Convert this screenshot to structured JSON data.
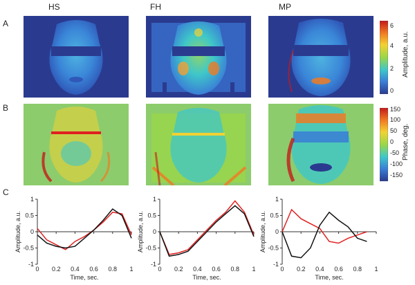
{
  "columns": [
    "HS",
    "FH",
    "MP"
  ],
  "row_labels": [
    "A",
    "B",
    "C"
  ],
  "colorbar_amplitude": {
    "title": "Amplitude, a.u.",
    "ticks": [
      "6",
      "4",
      "2",
      "0"
    ],
    "colors": [
      "#2a3b8f",
      "#3a7ed6",
      "#3fc7c9",
      "#9ad64a",
      "#f2d233",
      "#f07b23",
      "#c41a1a"
    ]
  },
  "colorbar_phase": {
    "title": "Phase, deg.",
    "ticks": [
      "150",
      "100",
      "50",
      "0",
      "-50",
      "-100",
      "-150"
    ],
    "colors": [
      "#2a3b8f",
      "#3a7ed6",
      "#3fc7c9",
      "#9ad64a",
      "#f2d233",
      "#f07b23",
      "#c41a1a"
    ]
  },
  "chart_data": [
    {
      "type": "line",
      "xlabel": "Time, sec.",
      "ylabel": "Amplitude, a.u.",
      "xlim": [
        0,
        1
      ],
      "ylim": [
        -1,
        1
      ],
      "xticks": [
        "0",
        "0.2",
        "0.4",
        "0.6",
        "0.8",
        "1"
      ],
      "yticks": [
        "1",
        "0.5",
        "0",
        "-0.5",
        "-1"
      ],
      "series": [
        {
          "color": "#e02020",
          "x": [
            0,
            0.1,
            0.2,
            0.3,
            0.4,
            0.5,
            0.6,
            0.7,
            0.8,
            0.9,
            1.0
          ],
          "y": [
            0.1,
            -0.25,
            -0.4,
            -0.55,
            -0.3,
            -0.15,
            0.05,
            0.3,
            0.6,
            0.55,
            -0.1
          ]
        },
        {
          "color": "#111111",
          "x": [
            0,
            0.1,
            0.2,
            0.3,
            0.4,
            0.5,
            0.6,
            0.7,
            0.8,
            0.9,
            1.0
          ],
          "y": [
            -0.1,
            -0.35,
            -0.45,
            -0.5,
            -0.45,
            -0.2,
            0.05,
            0.35,
            0.7,
            0.5,
            -0.2
          ]
        }
      ]
    },
    {
      "type": "line",
      "xlabel": "Time, sec.",
      "ylabel": "Amplitude, a.u.",
      "xlim": [
        0,
        1
      ],
      "ylim": [
        -1,
        1
      ],
      "xticks": [
        "0",
        "0.2",
        "0.4",
        "0.6",
        "0.8",
        "1"
      ],
      "yticks": [
        "1",
        "0.5",
        "0",
        "-0.5",
        "-1"
      ],
      "series": [
        {
          "color": "#e02020",
          "x": [
            0,
            0.1,
            0.2,
            0.3,
            0.4,
            0.5,
            0.6,
            0.7,
            0.8,
            0.9,
            1.0
          ],
          "y": [
            0.0,
            -0.7,
            -0.65,
            -0.55,
            -0.25,
            0.05,
            0.35,
            0.6,
            0.95,
            0.6,
            -0.1
          ]
        },
        {
          "color": "#111111",
          "x": [
            0,
            0.1,
            0.2,
            0.3,
            0.4,
            0.5,
            0.6,
            0.7,
            0.8,
            0.9,
            1.0
          ],
          "y": [
            0.0,
            -0.75,
            -0.7,
            -0.6,
            -0.3,
            0.0,
            0.3,
            0.55,
            0.8,
            0.55,
            -0.15
          ]
        }
      ]
    },
    {
      "type": "line",
      "xlabel": "Time, sec.",
      "ylabel": "Amplitude, a.u.",
      "xlim": [
        0,
        1
      ],
      "ylim": [
        -1,
        1
      ],
      "xticks": [
        "0",
        "0.2",
        "0.4",
        "0.6",
        "0.8",
        "1"
      ],
      "yticks": [
        "1",
        "0.5",
        "0",
        "-0.5",
        "-1"
      ],
      "series": [
        {
          "color": "#e02020",
          "x": [
            0,
            0.1,
            0.2,
            0.3,
            0.4,
            0.5,
            0.6,
            0.7,
            0.8,
            0.9
          ],
          "y": [
            0.0,
            0.68,
            0.4,
            0.25,
            0.1,
            -0.3,
            -0.35,
            -0.2,
            -0.1,
            0.0
          ]
        },
        {
          "color": "#111111",
          "x": [
            0,
            0.1,
            0.2,
            0.3,
            0.4,
            0.5,
            0.6,
            0.7,
            0.8,
            0.9
          ],
          "y": [
            0.0,
            -0.75,
            -0.8,
            -0.5,
            0.2,
            0.6,
            0.35,
            0.15,
            -0.2,
            -0.3
          ]
        }
      ]
    }
  ]
}
